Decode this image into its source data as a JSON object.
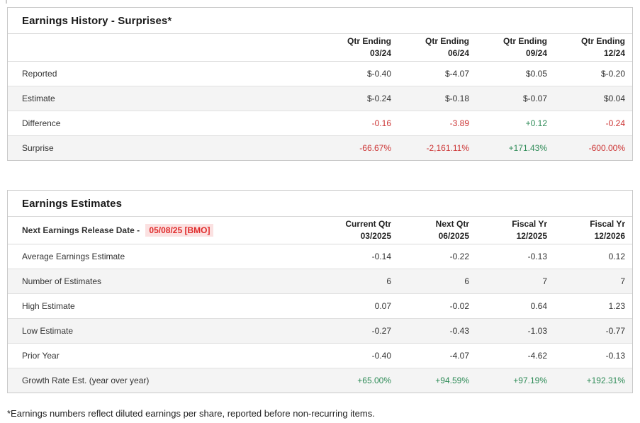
{
  "colors": {
    "positive": "#2e8b57",
    "negative": "#cc3333",
    "alert_red": "#e02b2b",
    "alert_bg": "#fbe1e1",
    "row_alt_bg": "#f4f4f4"
  },
  "earnings_history": {
    "title": "Earnings History - Surprises*",
    "columns": [
      "Qtr Ending\n03/24",
      "Qtr Ending\n06/24",
      "Qtr Ending\n09/24",
      "Qtr Ending\n12/24"
    ],
    "rows": [
      {
        "label": "Reported",
        "values": [
          "$-0.40",
          "$-4.07",
          "$0.05",
          "$-0.20"
        ],
        "styles": [
          "",
          "",
          "",
          ""
        ]
      },
      {
        "label": "Estimate",
        "values": [
          "$-0.24",
          "$-0.18",
          "$-0.07",
          "$0.04"
        ],
        "styles": [
          "",
          "",
          "",
          ""
        ]
      },
      {
        "label": "Difference",
        "values": [
          "-0.16",
          "-3.89",
          "+0.12",
          "-0.24"
        ],
        "styles": [
          "neg",
          "neg",
          "pos",
          "neg"
        ]
      },
      {
        "label": "Surprise",
        "values": [
          "-66.67%",
          "-2,161.11%",
          "+171.43%",
          "-600.00%"
        ],
        "styles": [
          "neg",
          "neg",
          "pos",
          "neg"
        ]
      }
    ]
  },
  "earnings_estimates": {
    "title": "Earnings Estimates",
    "release_label": "Next Earnings Release Date -",
    "release_date": "05/08/25 [BMO]",
    "columns": [
      "Current Qtr\n03/2025",
      "Next Qtr\n06/2025",
      "Fiscal Yr\n12/2025",
      "Fiscal Yr\n12/2026"
    ],
    "rows": [
      {
        "label": "Average Earnings Estimate",
        "values": [
          "-0.14",
          "-0.22",
          "-0.13",
          "0.12"
        ],
        "styles": [
          "",
          "",
          "",
          ""
        ]
      },
      {
        "label": "Number of Estimates",
        "values": [
          "6",
          "6",
          "7",
          "7"
        ],
        "styles": [
          "",
          "",
          "",
          ""
        ]
      },
      {
        "label": "High Estimate",
        "values": [
          "0.07",
          "-0.02",
          "0.64",
          "1.23"
        ],
        "styles": [
          "",
          "",
          "",
          ""
        ]
      },
      {
        "label": "Low Estimate",
        "values": [
          "-0.27",
          "-0.43",
          "-1.03",
          "-0.77"
        ],
        "styles": [
          "",
          "",
          "",
          ""
        ]
      },
      {
        "label": "Prior Year",
        "values": [
          "-0.40",
          "-4.07",
          "-4.62",
          "-0.13"
        ],
        "styles": [
          "",
          "",
          "",
          ""
        ]
      },
      {
        "label": "Growth Rate Est. (year over year)",
        "values": [
          "+65.00%",
          "+94.59%",
          "+97.19%",
          "+192.31%"
        ],
        "styles": [
          "pos",
          "pos",
          "pos",
          "pos"
        ]
      }
    ]
  },
  "page": {
    "footnote": "*Earnings numbers reflect diluted earnings per share, reported before non-recurring items."
  }
}
